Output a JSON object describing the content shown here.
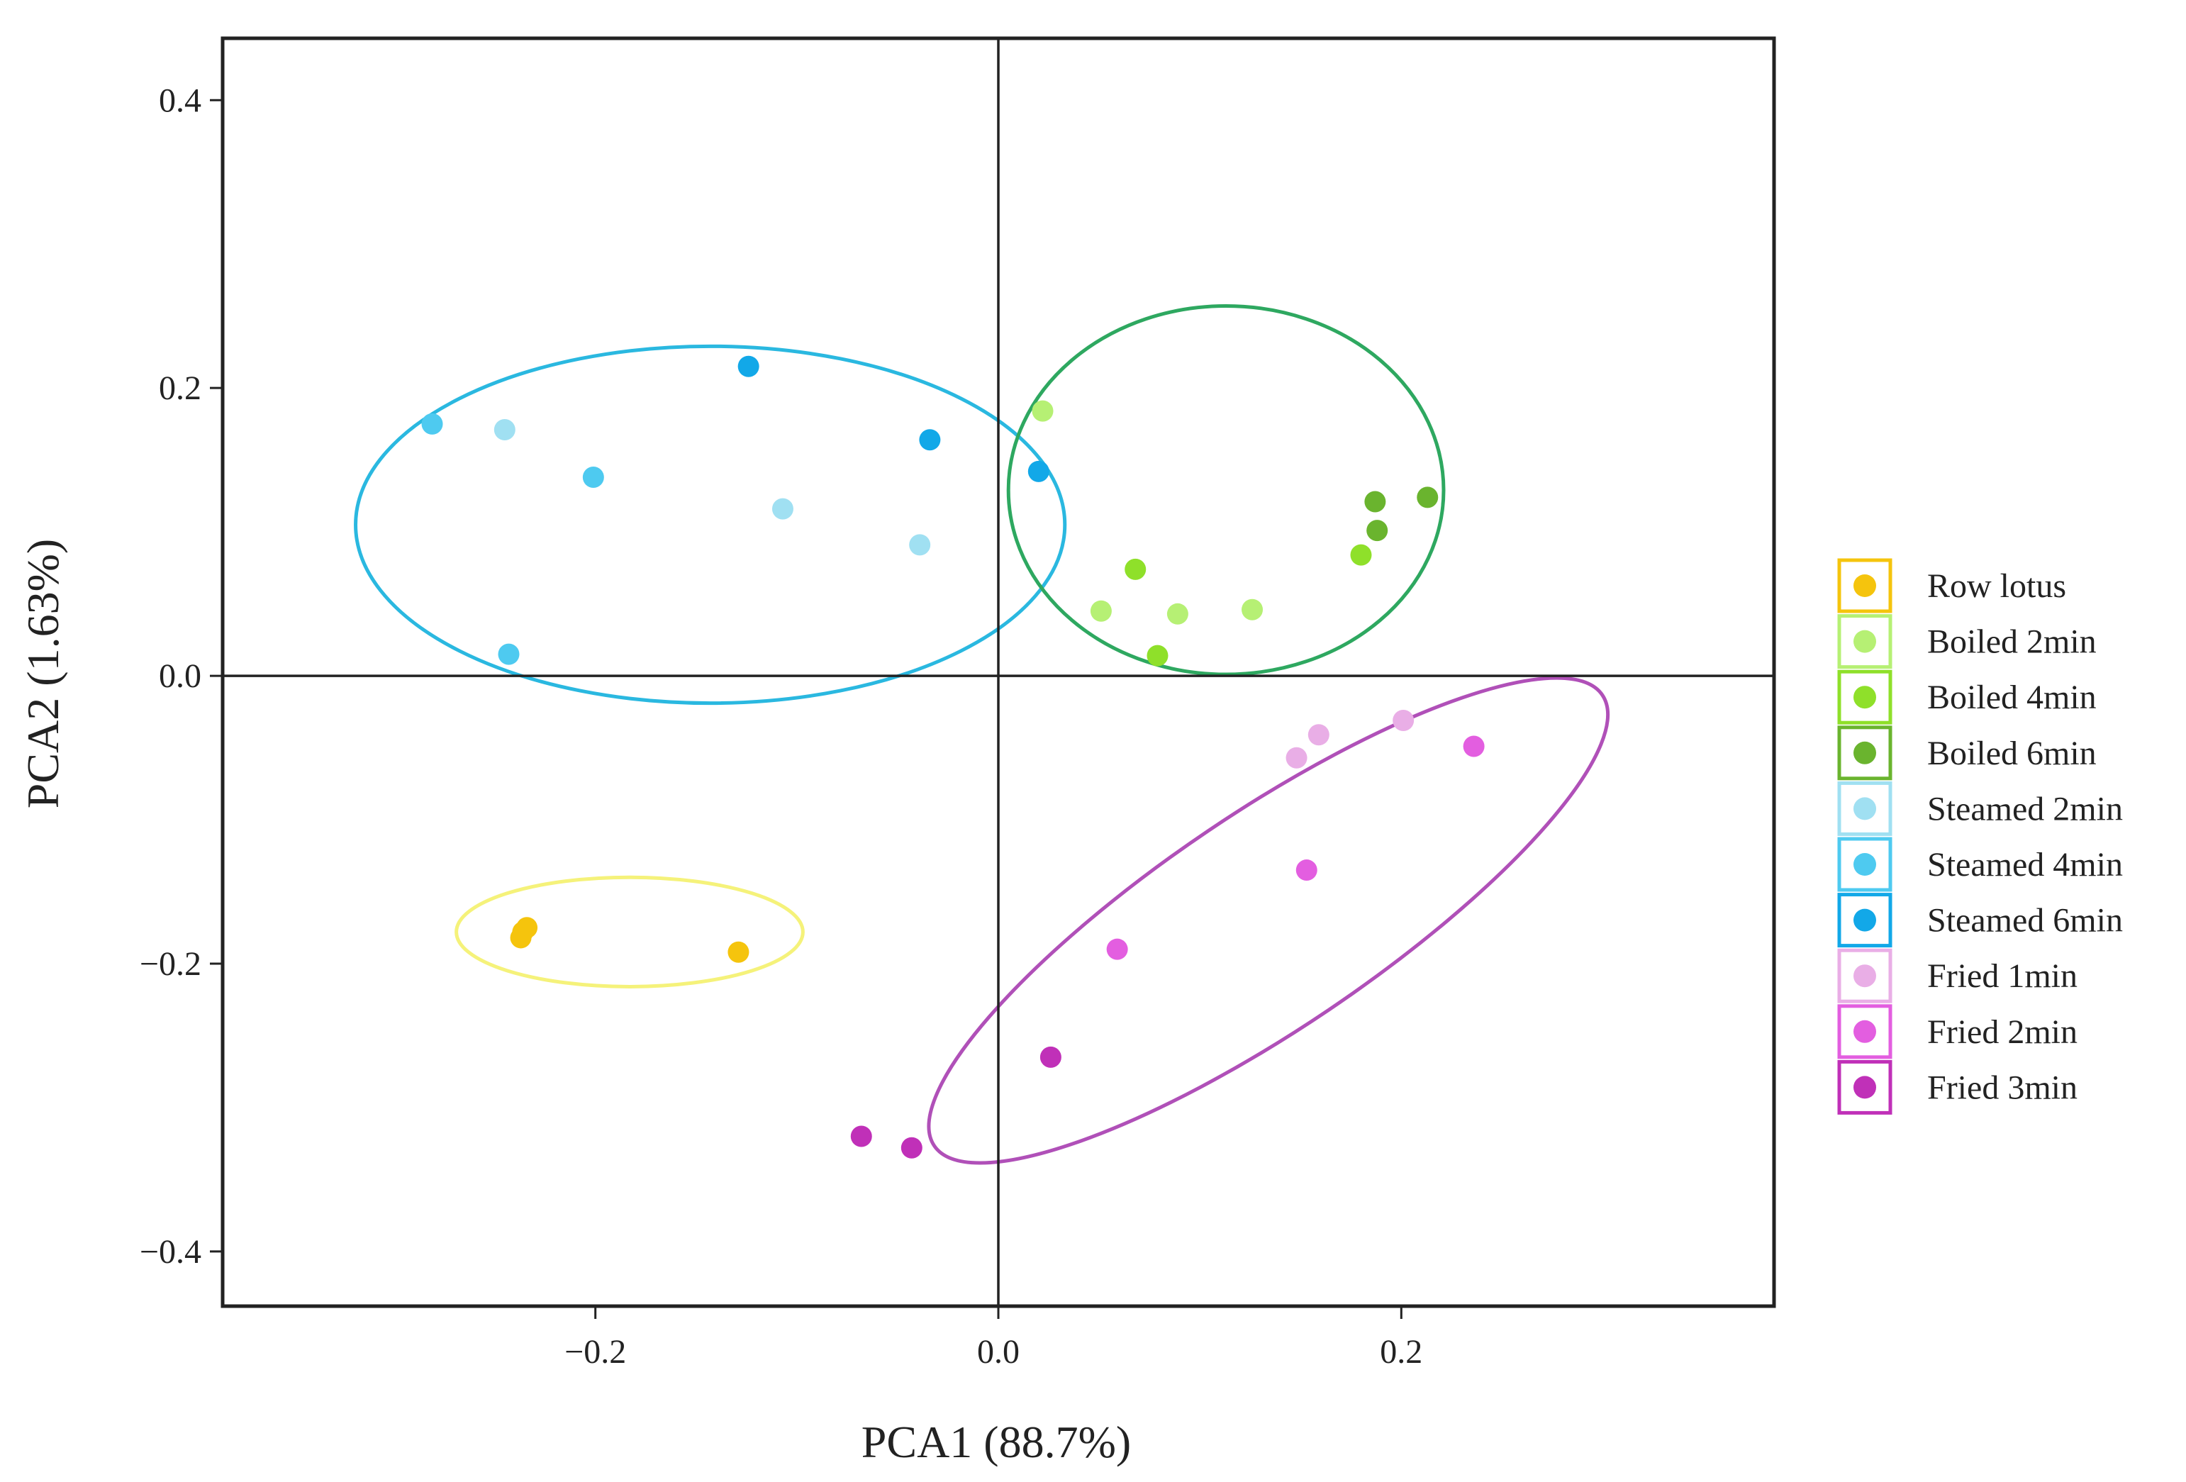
{
  "chart_data": {
    "type": "scatter",
    "xlabel": "PCA1 (88.7%)",
    "ylabel": "PCA2 (1.63%)",
    "xlim": [
      -0.385,
      0.385
    ],
    "ylim": [
      -0.438,
      0.443
    ],
    "xticks": [
      {
        "value": -0.2,
        "label": "−0.2"
      },
      {
        "value": 0.0,
        "label": "0.0"
      },
      {
        "value": 0.2,
        "label": "0.2"
      }
    ],
    "yticks": [
      {
        "value": 0.4,
        "label": "0.4"
      },
      {
        "value": 0.2,
        "label": "0.2"
      },
      {
        "value": 0.0,
        "label": "0.0"
      },
      {
        "value": -0.2,
        "label": "−0.2"
      },
      {
        "value": -0.4,
        "label": "−0.4"
      }
    ],
    "reference_lines": {
      "x": 0,
      "y": 0
    },
    "legend_position": "right",
    "series": [
      {
        "name": "Row lotus",
        "color": "#f5c40d",
        "points": [
          [
            -0.236,
            -0.178
          ],
          [
            -0.234,
            -0.175
          ],
          [
            -0.237,
            -0.182
          ],
          [
            -0.129,
            -0.192
          ]
        ]
      },
      {
        "name": "Boiled 2min",
        "color": "#b6f074",
        "points": [
          [
            0.022,
            0.184
          ],
          [
            0.051,
            0.045
          ],
          [
            0.089,
            0.043
          ],
          [
            0.126,
            0.046
          ]
        ]
      },
      {
        "name": "Boiled 4min",
        "color": "#8fe02a",
        "points": [
          [
            0.068,
            0.074
          ],
          [
            0.079,
            0.014
          ],
          [
            0.18,
            0.084
          ]
        ]
      },
      {
        "name": "Boiled 6min",
        "color": "#6ab42e",
        "points": [
          [
            0.187,
            0.121
          ],
          [
            0.188,
            0.101
          ],
          [
            0.213,
            0.124
          ]
        ]
      },
      {
        "name": "Steamed 2min",
        "color": "#a0e0f2",
        "points": [
          [
            -0.245,
            0.171
          ],
          [
            -0.107,
            0.116
          ],
          [
            -0.039,
            0.091
          ]
        ]
      },
      {
        "name": "Steamed 4min",
        "color": "#4ecaf0",
        "points": [
          [
            -0.281,
            0.175
          ],
          [
            -0.201,
            0.138
          ],
          [
            -0.243,
            0.015
          ]
        ]
      },
      {
        "name": "Steamed 6min",
        "color": "#12a8e8",
        "points": [
          [
            -0.124,
            0.215
          ],
          [
            -0.034,
            0.164
          ],
          [
            0.02,
            0.142
          ]
        ]
      },
      {
        "name": "Fried  1min",
        "color": "#e9aee6",
        "points": [
          [
            0.148,
            -0.057
          ],
          [
            0.159,
            -0.041
          ],
          [
            0.201,
            -0.031
          ]
        ]
      },
      {
        "name": "Fried  2min",
        "color": "#e35ee0",
        "points": [
          [
            0.236,
            -0.049
          ],
          [
            0.153,
            -0.135
          ],
          [
            0.059,
            -0.19
          ]
        ]
      },
      {
        "name": "Fried  3min",
        "color": "#c030b8",
        "points": [
          [
            0.026,
            -0.265
          ],
          [
            -0.068,
            -0.32
          ],
          [
            -0.043,
            -0.328
          ]
        ]
      }
    ],
    "ellipses": [
      {
        "group": "Steamed",
        "color": "#2ab8e0",
        "center": [
          -0.143,
          0.105
        ],
        "radii": [
          0.176,
          0.124
        ],
        "angle": 0
      },
      {
        "group": "Boiled",
        "color": "#2ea860",
        "center": [
          0.113,
          0.129
        ],
        "radii": [
          0.108,
          0.128
        ],
        "angle": 0
      },
      {
        "group": "Row lotus",
        "color": "#f5f27a",
        "center": [
          -0.183,
          -0.178
        ],
        "radii": [
          0.086,
          0.038
        ],
        "angle": 0
      },
      {
        "group": "Fried",
        "color": "#b050b8",
        "center": [
          0.134,
          -0.17
        ],
        "radii": [
          0.2,
          0.075
        ],
        "angle": 34
      }
    ]
  }
}
